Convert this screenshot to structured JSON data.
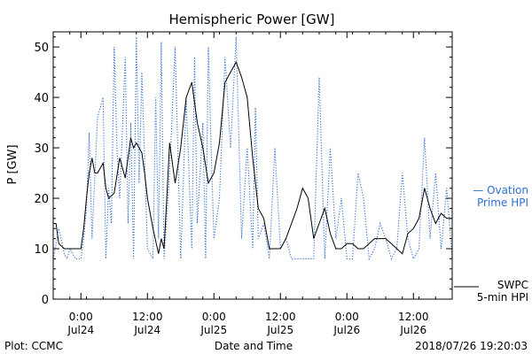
{
  "chart_data": {
    "type": "line",
    "title": "Hemispheric Power [GW]",
    "ylabel": "P [GW]",
    "xlabel": "Date and Time",
    "ylim": [
      0,
      53
    ],
    "xlim": [
      "2018-07-23T19:00",
      "2018-07-26T19:00"
    ],
    "yticks": [
      0,
      10,
      20,
      30,
      40,
      50
    ],
    "xticks": [
      {
        "at": "2018-07-24T00:00",
        "time": "0:00",
        "date": "Jul24"
      },
      {
        "at": "2018-07-24T12:00",
        "time": "12:00",
        "date": "Jul24"
      },
      {
        "at": "2018-07-25T00:00",
        "time": "0:00",
        "date": "Jul25"
      },
      {
        "at": "2018-07-25T12:00",
        "time": "12:00",
        "date": "Jul25"
      },
      {
        "at": "2018-07-26T00:00",
        "time": "0:00",
        "date": "Jul26"
      },
      {
        "at": "2018-07-26T12:00",
        "time": "12:00",
        "date": "Jul26"
      }
    ],
    "series": [
      {
        "name": "Ovation Prime HPI",
        "legend": [
          "— Ovation",
          "Prime HPI"
        ],
        "color": "#2f6fd0",
        "style": "dotted",
        "x": [
          "2018-07-23T19:00",
          "2018-07-23T20:00",
          "2018-07-23T21:00",
          "2018-07-23T21:30",
          "2018-07-23T22:00",
          "2018-07-23T23:00",
          "2018-07-24T00:00",
          "2018-07-24T00:30",
          "2018-07-24T01:00",
          "2018-07-24T01:30",
          "2018-07-24T02:00",
          "2018-07-24T03:00",
          "2018-07-24T04:00",
          "2018-07-24T04:30",
          "2018-07-24T05:00",
          "2018-07-24T05:30",
          "2018-07-24T06:00",
          "2018-07-24T06:30",
          "2018-07-24T07:00",
          "2018-07-24T08:00",
          "2018-07-24T08:30",
          "2018-07-24T09:00",
          "2018-07-24T09:30",
          "2018-07-24T10:00",
          "2018-07-24T10:30",
          "2018-07-24T11:00",
          "2018-07-24T12:00",
          "2018-07-24T13:00",
          "2018-07-24T13:30",
          "2018-07-24T14:00",
          "2018-07-24T14:30",
          "2018-07-24T15:00",
          "2018-07-24T16:00",
          "2018-07-24T17:00",
          "2018-07-24T18:00",
          "2018-07-24T19:00",
          "2018-07-24T20:00",
          "2018-07-24T20:30",
          "2018-07-24T21:00",
          "2018-07-24T22:00",
          "2018-07-24T22:30",
          "2018-07-24T23:00",
          "2018-07-24T23:30",
          "2018-07-25T00:00",
          "2018-07-25T01:00",
          "2018-07-25T02:00",
          "2018-07-25T03:00",
          "2018-07-25T04:00",
          "2018-07-25T05:00",
          "2018-07-25T06:00",
          "2018-07-25T07:00",
          "2018-07-25T07:30",
          "2018-07-25T08:00",
          "2018-07-25T09:00",
          "2018-07-25T10:00",
          "2018-07-25T11:00",
          "2018-07-25T12:00",
          "2018-07-25T13:00",
          "2018-07-25T14:00",
          "2018-07-25T15:00",
          "2018-07-25T16:00",
          "2018-07-25T17:00",
          "2018-07-25T18:00",
          "2018-07-25T19:00",
          "2018-07-25T20:00",
          "2018-07-25T21:00",
          "2018-07-25T22:00",
          "2018-07-25T23:00",
          "2018-07-26T00:00",
          "2018-07-26T01:00",
          "2018-07-26T02:00",
          "2018-07-26T03:00",
          "2018-07-26T04:00",
          "2018-07-26T05:00",
          "2018-07-26T06:00",
          "2018-07-26T07:00",
          "2018-07-26T08:00",
          "2018-07-26T09:00",
          "2018-07-26T10:00",
          "2018-07-26T11:00",
          "2018-07-26T12:00",
          "2018-07-26T13:00",
          "2018-07-26T14:00",
          "2018-07-26T15:00",
          "2018-07-26T16:00",
          "2018-07-26T17:00",
          "2018-07-26T18:00",
          "2018-07-26T19:00"
        ],
        "values": [
          8,
          14,
          9,
          8,
          10,
          8,
          8,
          12,
          18,
          33,
          12,
          36,
          40,
          8,
          22,
          15,
          50,
          30,
          20,
          48,
          15,
          35,
          8,
          52,
          23,
          45,
          10,
          8,
          40,
          12,
          51,
          8,
          25,
          50,
          8,
          40,
          10,
          48,
          15,
          35,
          8,
          50,
          30,
          12,
          20,
          48,
          30,
          52,
          12,
          30,
          10,
          38,
          12,
          15,
          8,
          30,
          10,
          12,
          8,
          8,
          8,
          8,
          8,
          44,
          8,
          30,
          12,
          20,
          8,
          8,
          25,
          20,
          8,
          10,
          15,
          12,
          8,
          10,
          25,
          12,
          8,
          10,
          32,
          12,
          25,
          10,
          22,
          8
        ]
      },
      {
        "name": "SWPC 5-min HPI",
        "legend": [
          "SWPC",
          "5-min HPI"
        ],
        "color": "#000000",
        "style": "solid",
        "x": [
          "2018-07-23T19:00",
          "2018-07-23T19:30",
          "2018-07-23T20:00",
          "2018-07-23T21:00",
          "2018-07-23T22:00",
          "2018-07-23T23:00",
          "2018-07-24T00:00",
          "2018-07-24T00:30",
          "2018-07-24T01:00",
          "2018-07-24T01:30",
          "2018-07-24T02:00",
          "2018-07-24T02:30",
          "2018-07-24T03:00",
          "2018-07-24T04:00",
          "2018-07-24T04:30",
          "2018-07-24T05:00",
          "2018-07-24T06:00",
          "2018-07-24T07:00",
          "2018-07-24T08:00",
          "2018-07-24T09:00",
          "2018-07-24T09:30",
          "2018-07-24T10:00",
          "2018-07-24T11:00",
          "2018-07-24T11:30",
          "2018-07-24T12:00",
          "2018-07-24T13:00",
          "2018-07-24T14:00",
          "2018-07-24T14:30",
          "2018-07-24T15:00",
          "2018-07-24T15:30",
          "2018-07-24T16:00",
          "2018-07-24T17:00",
          "2018-07-24T18:00",
          "2018-07-24T19:00",
          "2018-07-24T20:00",
          "2018-07-24T21:00",
          "2018-07-24T22:00",
          "2018-07-24T23:00",
          "2018-07-25T00:00",
          "2018-07-25T01:00",
          "2018-07-25T02:00",
          "2018-07-25T03:00",
          "2018-07-25T04:00",
          "2018-07-25T05:00",
          "2018-07-25T06:00",
          "2018-07-25T07:00",
          "2018-07-25T08:00",
          "2018-07-25T09:00",
          "2018-07-25T10:00",
          "2018-07-25T11:00",
          "2018-07-25T12:00",
          "2018-07-25T13:00",
          "2018-07-25T14:00",
          "2018-07-25T15:00",
          "2018-07-25T16:00",
          "2018-07-25T17:00",
          "2018-07-25T18:00",
          "2018-07-25T19:00",
          "2018-07-25T20:00",
          "2018-07-25T21:00",
          "2018-07-25T22:00",
          "2018-07-25T23:00",
          "2018-07-26T00:00",
          "2018-07-26T01:00",
          "2018-07-26T02:00",
          "2018-07-26T03:00",
          "2018-07-26T04:00",
          "2018-07-26T05:00",
          "2018-07-26T06:00",
          "2018-07-26T07:00",
          "2018-07-26T08:00",
          "2018-07-26T09:00",
          "2018-07-26T10:00",
          "2018-07-26T11:00",
          "2018-07-26T12:00",
          "2018-07-26T13:00",
          "2018-07-26T14:00",
          "2018-07-26T15:00",
          "2018-07-26T16:00",
          "2018-07-26T17:00",
          "2018-07-26T18:00",
          "2018-07-26T19:00"
        ],
        "values": [
          15,
          15,
          11,
          10,
          10,
          10,
          10,
          14,
          20,
          25,
          28,
          25,
          25,
          27,
          22,
          20,
          21,
          28,
          24,
          32,
          30,
          31,
          29,
          25,
          20,
          14,
          9,
          12,
          10,
          20,
          31,
          23,
          30,
          40,
          43,
          35,
          30,
          23,
          25,
          31,
          43,
          45,
          47,
          44,
          40,
          28,
          18,
          16,
          10,
          10,
          10,
          12,
          15,
          18,
          22,
          20,
          12,
          15,
          18,
          13,
          10,
          10,
          11,
          11,
          10,
          10,
          11,
          12,
          12,
          12,
          11,
          10,
          9,
          13,
          14,
          16,
          22,
          18,
          15,
          17,
          16,
          16
        ]
      }
    ],
    "annotations": {
      "plot_credit": "Plot: CCMC",
      "timestamp": "2018/07/26 19:20:03"
    }
  }
}
